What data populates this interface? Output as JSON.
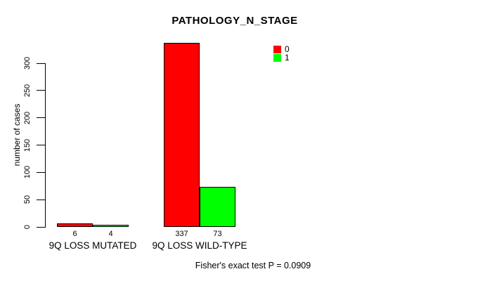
{
  "chart_data": {
    "type": "bar",
    "title": "PATHOLOGY_N_STAGE",
    "ylabel": "number of cases",
    "xlabel": "",
    "categories": [
      "9Q LOSS MUTATED",
      "9Q LOSS WILD-TYPE"
    ],
    "series": [
      {
        "name": "0",
        "color": "#ff0000",
        "values": [
          6,
          337
        ]
      },
      {
        "name": "1",
        "color": "#00ff00",
        "values": [
          4,
          73
        ]
      }
    ],
    "yticks": [
      0,
      50,
      100,
      150,
      200,
      250,
      300
    ],
    "ylim": [
      0,
      300
    ],
    "grid": false,
    "legend_position": "top-right",
    "bar_border_color": "#000000",
    "text_color": "#000000",
    "background_color": "#ffffff",
    "caption": "Fisher's exact test P = 0.0909"
  }
}
